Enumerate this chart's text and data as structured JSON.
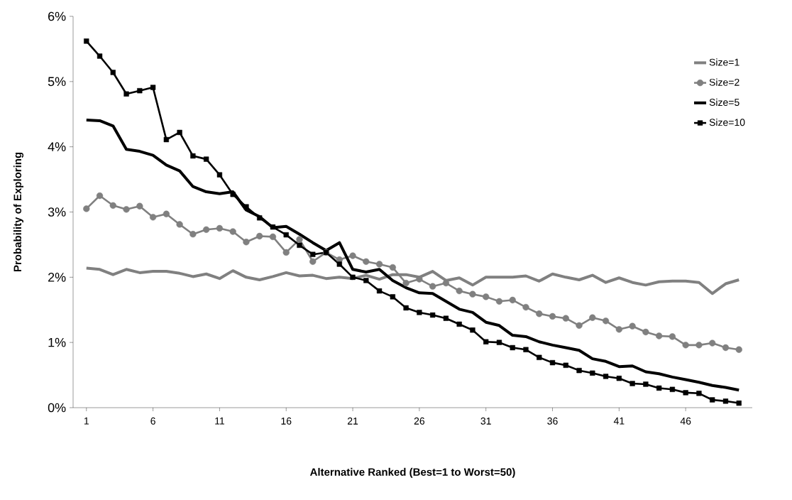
{
  "chart_data": {
    "type": "line",
    "xlabel": "Alternative Ranked (Best=1 to Worst=50)",
    "ylabel": "Probability of Exploring",
    "categories": [
      "1",
      null,
      null,
      null,
      null,
      "6",
      null,
      null,
      null,
      null,
      "11",
      null,
      null,
      null,
      null,
      "16",
      null,
      null,
      null,
      null,
      "21",
      null,
      null,
      null,
      null,
      "26",
      null,
      null,
      null,
      null,
      "31",
      null,
      null,
      null,
      null,
      "36",
      null,
      null,
      null,
      null,
      "41",
      null,
      null,
      null,
      null,
      "46",
      null,
      null,
      null,
      null
    ],
    "ylim": [
      0,
      6
    ],
    "yticks": [
      {
        "value": 0,
        "label": "0%"
      },
      {
        "value": 1,
        "label": "1%"
      },
      {
        "value": 2,
        "label": "2%"
      },
      {
        "value": 3,
        "label": "3%"
      },
      {
        "value": 4,
        "label": "4%"
      },
      {
        "value": 5,
        "label": "5%"
      },
      {
        "value": 6,
        "label": "6%"
      }
    ],
    "legend": "right",
    "line_style": "solid",
    "series": [
      {
        "name": "Size=1",
        "color": "#808080",
        "marker": "none",
        "values": [
          2.14,
          2.12,
          2.04,
          2.12,
          2.07,
          2.09,
          2.09,
          2.06,
          2.01,
          2.05,
          1.98,
          2.1,
          2.0,
          1.96,
          2.01,
          2.07,
          2.02,
          2.03,
          1.98,
          2.0,
          1.98,
          2.03,
          1.97,
          2.04,
          2.04,
          2.0,
          2.09,
          1.95,
          1.99,
          1.88,
          2.0,
          2.0,
          2.0,
          2.02,
          1.94,
          2.05,
          2.0,
          1.96,
          2.03,
          1.92,
          1.99,
          1.92,
          1.88,
          1.93,
          1.94,
          1.94,
          1.92,
          1.75,
          1.9,
          1.96
        ]
      },
      {
        "name": "Size=2",
        "color": "#808080",
        "marker": "circle",
        "values": [
          3.05,
          3.25,
          3.1,
          3.04,
          3.09,
          2.92,
          2.97,
          2.81,
          2.66,
          2.73,
          2.75,
          2.7,
          2.54,
          2.63,
          2.62,
          2.38,
          2.58,
          2.24,
          2.38,
          2.27,
          2.33,
          2.24,
          2.2,
          2.15,
          1.91,
          1.97,
          1.86,
          1.91,
          1.79,
          1.74,
          1.7,
          1.63,
          1.65,
          1.54,
          1.44,
          1.4,
          1.37,
          1.26,
          1.38,
          1.33,
          1.2,
          1.25,
          1.16,
          1.1,
          1.09,
          0.96,
          0.96,
          0.99,
          0.92,
          0.89
        ]
      },
      {
        "name": "Size=5",
        "color": "#000000",
        "marker": "none",
        "values": [
          4.41,
          4.4,
          4.32,
          3.96,
          3.93,
          3.87,
          3.72,
          3.63,
          3.39,
          3.31,
          3.28,
          3.31,
          3.03,
          2.93,
          2.76,
          2.78,
          2.66,
          2.53,
          2.41,
          2.53,
          2.12,
          2.08,
          2.12,
          1.95,
          1.84,
          1.76,
          1.75,
          1.63,
          1.51,
          1.46,
          1.31,
          1.26,
          1.11,
          1.09,
          1.01,
          0.96,
          0.92,
          0.88,
          0.75,
          0.71,
          0.63,
          0.64,
          0.55,
          0.52,
          0.47,
          0.43,
          0.39,
          0.34,
          0.31,
          0.27
        ]
      },
      {
        "name": "Size=10",
        "color": "#000000",
        "marker": "square",
        "values": [
          5.62,
          5.39,
          5.14,
          4.81,
          4.86,
          4.91,
          4.11,
          4.22,
          3.86,
          3.81,
          3.57,
          3.27,
          3.08,
          2.91,
          2.77,
          2.65,
          2.49,
          2.35,
          2.38,
          2.2,
          2.0,
          1.95,
          1.79,
          1.7,
          1.53,
          1.46,
          1.42,
          1.37,
          1.28,
          1.19,
          1.01,
          1.0,
          0.92,
          0.89,
          0.77,
          0.69,
          0.65,
          0.57,
          0.53,
          0.48,
          0.45,
          0.37,
          0.36,
          0.3,
          0.28,
          0.23,
          0.22,
          0.12,
          0.1,
          0.07
        ]
      }
    ]
  }
}
